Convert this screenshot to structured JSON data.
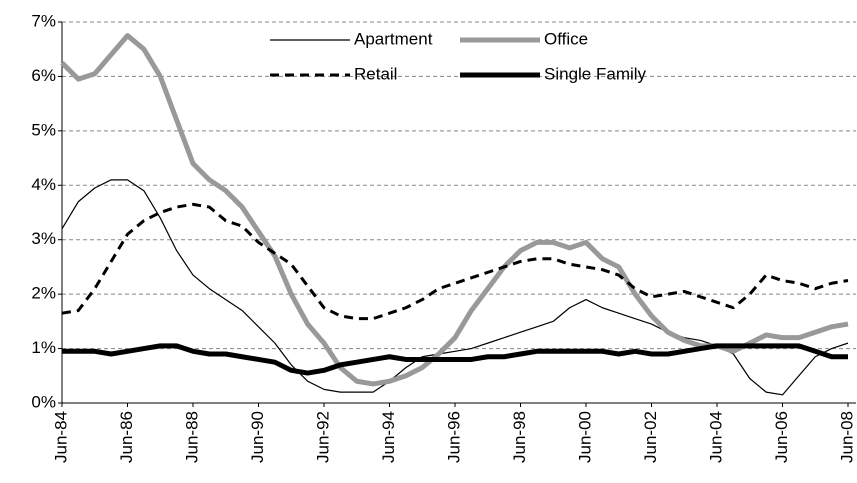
{
  "chart_data": {
    "type": "line",
    "x": [
      1984.5,
      1985,
      1985.5,
      1986,
      1986.5,
      1987,
      1987.5,
      1988,
      1988.5,
      1989,
      1989.5,
      1990,
      1990.5,
      1991,
      1991.5,
      1992,
      1992.5,
      1993,
      1993.5,
      1994,
      1994.5,
      1995,
      1995.5,
      1996,
      1996.5,
      1997,
      1997.5,
      1998,
      1998.5,
      1999,
      1999.5,
      2000,
      2000.5,
      2001,
      2001.5,
      2002,
      2002.5,
      2003,
      2003.5,
      2004,
      2004.5,
      2005,
      2005.5,
      2006,
      2006.5,
      2007,
      2007.5,
      2008,
      2008.5
    ],
    "series": [
      {
        "name": "Apartment",
        "color": "#000000",
        "values": [
          3.2,
          3.7,
          3.95,
          4.1,
          4.1,
          3.9,
          3.4,
          2.8,
          2.35,
          2.1,
          1.9,
          1.7,
          1.4,
          1.1,
          0.7,
          0.4,
          0.25,
          0.2,
          0.2,
          0.2,
          0.4,
          0.65,
          0.85,
          0.9,
          0.95,
          1.0,
          1.1,
          1.2,
          1.3,
          1.4,
          1.5,
          1.75,
          1.9,
          1.75,
          1.65,
          1.55,
          1.45,
          1.3,
          1.2,
          1.15,
          1.05,
          0.9,
          0.45,
          0.2,
          0.15,
          0.5,
          0.85,
          1.0,
          1.1
        ]
      },
      {
        "name": "Office",
        "color": "#999999",
        "values": [
          6.25,
          5.95,
          6.05,
          6.4,
          6.75,
          6.5,
          6.0,
          5.2,
          4.4,
          4.1,
          3.9,
          3.6,
          3.15,
          2.7,
          2.0,
          1.45,
          1.1,
          0.65,
          0.4,
          0.35,
          0.4,
          0.5,
          0.65,
          0.9,
          1.2,
          1.7,
          2.1,
          2.5,
          2.8,
          2.95,
          2.95,
          2.85,
          2.95,
          2.65,
          2.5,
          2.0,
          1.6,
          1.3,
          1.15,
          1.05,
          1.05,
          0.95,
          1.1,
          1.25,
          1.2,
          1.2,
          1.3,
          1.4,
          1.45
        ]
      },
      {
        "name": "Retail",
        "color": "#000000",
        "values": [
          1.65,
          1.7,
          2.1,
          2.6,
          3.1,
          3.35,
          3.5,
          3.6,
          3.65,
          3.6,
          3.35,
          3.25,
          2.95,
          2.75,
          2.55,
          2.15,
          1.75,
          1.6,
          1.55,
          1.55,
          1.65,
          1.75,
          1.9,
          2.1,
          2.2,
          2.3,
          2.4,
          2.5,
          2.6,
          2.65,
          2.65,
          2.55,
          2.5,
          2.45,
          2.35,
          2.1,
          1.95,
          2.0,
          2.05,
          1.95,
          1.85,
          1.75,
          2.0,
          2.35,
          2.25,
          2.2,
          2.1,
          2.2,
          2.25
        ]
      },
      {
        "name": "Single Family",
        "color": "#000000",
        "values": [
          0.95,
          0.95,
          0.95,
          0.9,
          0.95,
          1.0,
          1.05,
          1.05,
          0.95,
          0.9,
          0.9,
          0.85,
          0.8,
          0.75,
          0.6,
          0.55,
          0.6,
          0.7,
          0.75,
          0.8,
          0.85,
          0.8,
          0.8,
          0.8,
          0.8,
          0.8,
          0.85,
          0.85,
          0.9,
          0.95,
          0.95,
          0.95,
          0.95,
          0.95,
          0.9,
          0.95,
          0.9,
          0.9,
          0.95,
          1.0,
          1.05,
          1.05,
          1.05,
          1.05,
          1.05,
          1.05,
          0.95,
          0.85,
          0.85
        ]
      }
    ],
    "xlim": [
      1984.5,
      2008.5
    ],
    "xticks": [
      {
        "value": 1984.5,
        "label": "Jun-84"
      },
      {
        "value": 1986.5,
        "label": "Jun-86"
      },
      {
        "value": 1988.5,
        "label": "Jun-88"
      },
      {
        "value": 1990.5,
        "label": "Jun-90"
      },
      {
        "value": 1992.5,
        "label": "Jun-92"
      },
      {
        "value": 1994.5,
        "label": "Jun-94"
      },
      {
        "value": 1996.5,
        "label": "Jun-96"
      },
      {
        "value": 1998.5,
        "label": "Jun-98"
      },
      {
        "value": 2000.5,
        "label": "Jun-00"
      },
      {
        "value": 2002.5,
        "label": "Jun-02"
      },
      {
        "value": 2004.5,
        "label": "Jun-04"
      },
      {
        "value": 2006.5,
        "label": "Jun-06"
      },
      {
        "value": 2008.5,
        "label": "Jun-08"
      }
    ],
    "ylim": [
      0,
      7
    ],
    "yticks": [
      {
        "value": 0,
        "label": "0%"
      },
      {
        "value": 1,
        "label": "1%"
      },
      {
        "value": 2,
        "label": "2%"
      },
      {
        "value": 3,
        "label": "3%"
      },
      {
        "value": 4,
        "label": "4%"
      },
      {
        "value": 5,
        "label": "5%"
      },
      {
        "value": 6,
        "label": "6%"
      },
      {
        "value": 7,
        "label": "7%"
      }
    ],
    "grid": true
  }
}
